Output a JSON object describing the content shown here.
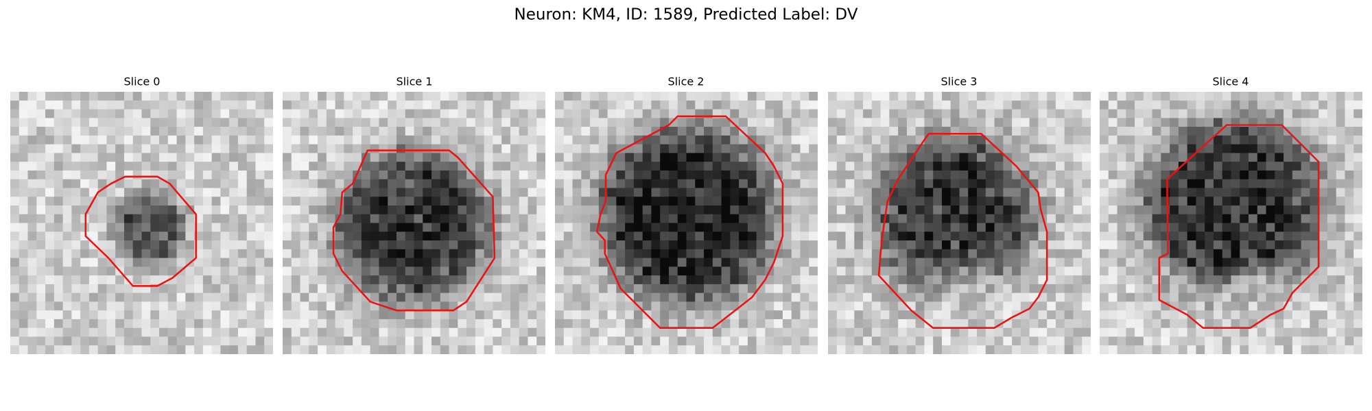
{
  "title": "Neuron: KM4, ID: 1589, Predicted Label: DV",
  "panels": [
    {
      "title": "Slice 0"
    },
    {
      "title": "Slice 1"
    },
    {
      "title": "Slice 2"
    },
    {
      "title": "Slice 3"
    },
    {
      "title": "Slice 4"
    }
  ]
}
